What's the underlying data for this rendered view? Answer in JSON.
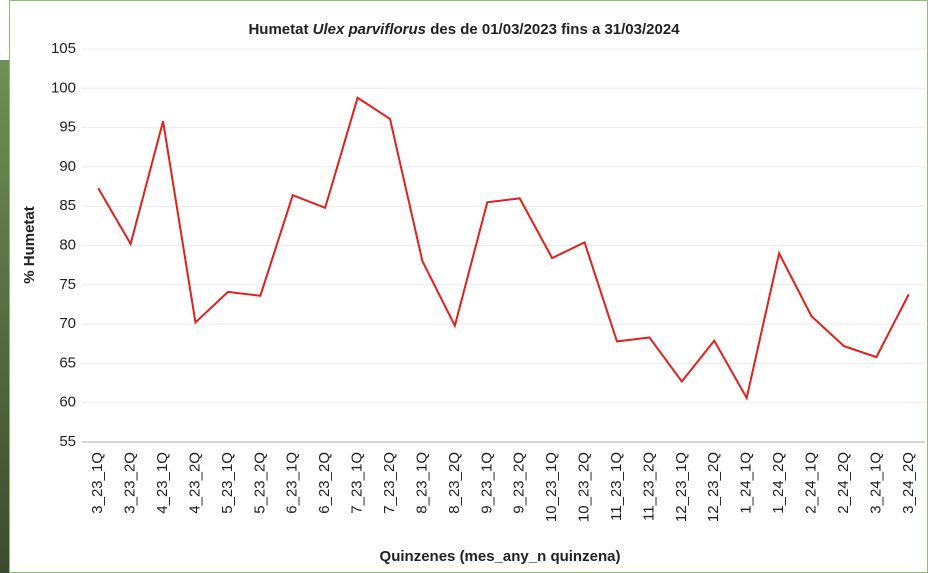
{
  "chart_data": {
    "type": "line",
    "title_prefix": "Humetat",
    "title_species": "Ulex parviflorus",
    "title_suffix": "des de 01/03/2023 fins a 31/03/2024",
    "x_label": "Quinzenes (mes_any_n quinzena)",
    "y_label": "% Humetat",
    "categories": [
      "3_23_1Q",
      "3_23_2Q",
      "4_23_1Q",
      "4_23_2Q",
      "5_23_1Q",
      "5_23_2Q",
      "6_23_1Q",
      "6_23_2Q",
      "7_23_1Q",
      "7_23_2Q",
      "8_23_1Q",
      "8_23_2Q",
      "9_23_1Q",
      "9_23_2Q",
      "10_23_1Q",
      "10_23_2Q",
      "11_23_1Q",
      "11_23_2Q",
      "12_23_1Q",
      "12_23_2Q",
      "1_24_1Q",
      "1_24_2Q",
      "2_24_1Q",
      "2_24_2Q",
      "3_24_1Q",
      "3_24_2Q"
    ],
    "series": [
      {
        "color": "#e0201c",
        "values": [
          87.3,
          80.2,
          95.8,
          70.2,
          74.1,
          73.6,
          86.4,
          84.8,
          98.8,
          96.1,
          78.0,
          69.8,
          85.5,
          86.0,
          78.4,
          80.4,
          67.8,
          68.3,
          62.7,
          67.9,
          60.6,
          79.0,
          71.0,
          67.2,
          65.8,
          73.8
        ]
      }
    ],
    "ylim": [
      55,
      105
    ],
    "yticks": [
      55,
      60,
      65,
      70,
      75,
      80,
      85,
      90,
      95,
      100,
      105
    ],
    "grid": true
  }
}
